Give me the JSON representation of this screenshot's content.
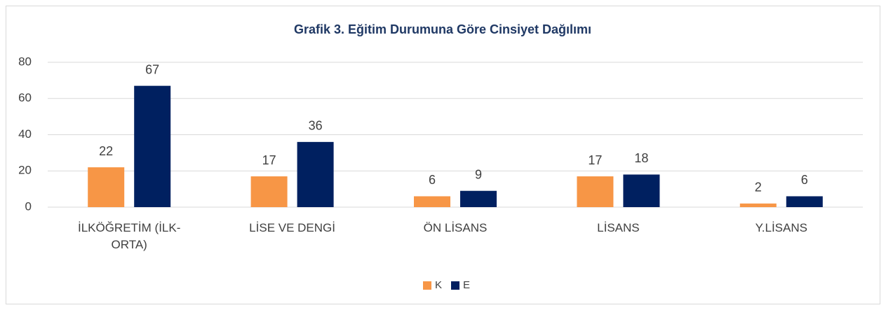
{
  "chart_data": {
    "type": "bar",
    "title": "Grafik 3. Eğitim Durumuna Göre Cinsiyet Dağılımı",
    "categories": [
      "İLKÖĞRETİM (İLK-ORTA)",
      "LİSE VE DENGİ",
      "ÖN LİSANS",
      "LİSANS",
      "Y.LİSANS"
    ],
    "series": [
      {
        "name": "K",
        "color": "#f79646",
        "values": [
          22,
          17,
          6,
          17,
          2
        ]
      },
      {
        "name": "E",
        "color": "#002060",
        "values": [
          67,
          36,
          9,
          18,
          6
        ]
      }
    ],
    "ylim": [
      0,
      80
    ],
    "yticks": [
      0,
      20,
      40,
      60,
      80
    ],
    "grid": true,
    "legend": "bottom"
  }
}
